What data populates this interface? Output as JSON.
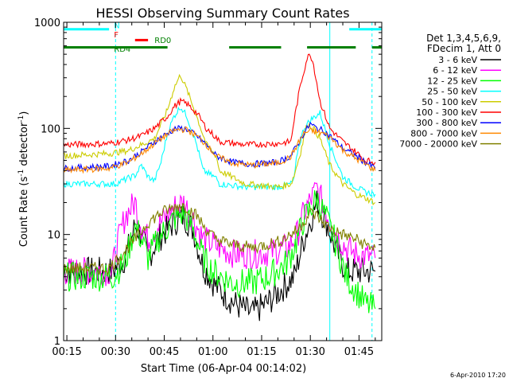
{
  "chart_data": {
    "type": "line",
    "title": "HESSI Observing Summary Count Rates",
    "xlabel": "Start Time (06-Apr-04 00:14:02)",
    "ylabel_main": "Count Rate (s",
    "ylabel_sup1": "-1",
    "ylabel_mid": " detector",
    "ylabel_sup2": "-1",
    "ylabel_end": ")",
    "x_units": "minutes after 00:00 UT",
    "xlim": [
      14,
      112
    ],
    "ylim": [
      1,
      1000
    ],
    "yscale": "log",
    "x_ticks": [
      {
        "x": 15,
        "label": "00:15"
      },
      {
        "x": 30,
        "label": "00:30"
      },
      {
        "x": 45,
        "label": "00:45"
      },
      {
        "x": 60,
        "label": "01:00"
      },
      {
        "x": 75,
        "label": "01:15"
      },
      {
        "x": 90,
        "label": "01:30"
      },
      {
        "x": 105,
        "label": "01:45"
      }
    ],
    "y_ticks": [
      {
        "y": 1,
        "label": "1"
      },
      {
        "y": 10,
        "label": "10"
      },
      {
        "y": 100,
        "label": "100"
      },
      {
        "y": 1000,
        "label": "1000"
      }
    ],
    "legend_header": [
      "Det 1,3,4,5,6,9,",
      "FDecim 1, Att 0"
    ],
    "legend_position": "right",
    "series": [
      {
        "name": "3 - 6 keV",
        "color": "#000000",
        "points": [
          [
            14,
            4.5
          ],
          [
            29,
            4.5
          ],
          [
            33,
            6
          ],
          [
            36,
            12
          ],
          [
            38,
            10
          ],
          [
            40,
            6
          ],
          [
            43,
            9
          ],
          [
            48,
            13
          ],
          [
            51,
            15
          ],
          [
            54,
            11
          ],
          [
            57,
            5
          ],
          [
            61,
            3.2
          ],
          [
            67,
            2.2
          ],
          [
            72,
            1.8
          ],
          [
            77,
            2.3
          ],
          [
            85,
            4
          ],
          [
            88,
            9
          ],
          [
            92,
            20
          ],
          [
            95,
            13
          ],
          [
            98,
            7
          ],
          [
            101,
            4.5
          ],
          [
            108,
            4.5
          ],
          [
            110,
            4.5
          ]
        ]
      },
      {
        "name": "6 - 12 keV",
        "color": "#ff00ff",
        "points": [
          [
            14,
            4.5
          ],
          [
            29,
            4.5
          ],
          [
            30,
            7
          ],
          [
            33,
            15
          ],
          [
            36,
            20
          ],
          [
            38,
            12
          ],
          [
            40,
            9
          ],
          [
            43,
            12
          ],
          [
            48,
            18
          ],
          [
            51,
            20
          ],
          [
            54,
            14
          ],
          [
            57,
            9
          ],
          [
            62,
            7.5
          ],
          [
            67,
            6.5
          ],
          [
            72,
            6.5
          ],
          [
            77,
            6.8
          ],
          [
            83,
            7.5
          ],
          [
            86,
            10
          ],
          [
            88,
            16
          ],
          [
            92,
            27
          ],
          [
            95,
            16
          ],
          [
            98,
            10
          ],
          [
            101,
            7.5
          ],
          [
            104,
            6.5
          ],
          [
            110,
            6
          ]
        ]
      },
      {
        "name": "12 - 25 keV",
        "color": "#00ff00",
        "points": [
          [
            14,
            4
          ],
          [
            29,
            4
          ],
          [
            33,
            5.5
          ],
          [
            36,
            12
          ],
          [
            38,
            9
          ],
          [
            40,
            6
          ],
          [
            43,
            9
          ],
          [
            48,
            14
          ],
          [
            51,
            16
          ],
          [
            54,
            11
          ],
          [
            57,
            6
          ],
          [
            60,
            4.5
          ],
          [
            66,
            3.5
          ],
          [
            72,
            3.5
          ],
          [
            77,
            4
          ],
          [
            83,
            5.5
          ],
          [
            86,
            9
          ],
          [
            88,
            14
          ],
          [
            92,
            22
          ],
          [
            95,
            14
          ],
          [
            98,
            8
          ],
          [
            101,
            4
          ],
          [
            104,
            3
          ],
          [
            107,
            2.2
          ],
          [
            110,
            2
          ]
        ]
      },
      {
        "name": "25 - 50 keV",
        "color": "#00ffff",
        "points": [
          [
            14,
            30
          ],
          [
            30,
            30
          ],
          [
            32,
            32
          ],
          [
            36,
            36
          ],
          [
            38,
            45
          ],
          [
            40,
            35
          ],
          [
            42,
            32
          ],
          [
            44,
            48
          ],
          [
            46,
            90
          ],
          [
            48,
            130
          ],
          [
            50,
            160
          ],
          [
            52,
            130
          ],
          [
            55,
            70
          ],
          [
            57,
            40
          ],
          [
            61,
            34
          ],
          [
            62,
            30
          ],
          [
            70,
            28
          ],
          [
            80,
            28
          ],
          [
            84,
            30
          ],
          [
            85,
            33
          ],
          [
            86,
            60
          ],
          [
            88,
            100
          ],
          [
            90,
            120
          ],
          [
            93,
            140
          ],
          [
            96,
            70
          ],
          [
            100,
            35
          ],
          [
            104,
            28
          ],
          [
            107,
            25
          ],
          [
            110,
            24
          ]
        ]
      },
      {
        "name": "50 - 100 keV",
        "color": "#cccc00",
        "points": [
          [
            14,
            55
          ],
          [
            28,
            58
          ],
          [
            34,
            62
          ],
          [
            38,
            70
          ],
          [
            42,
            80
          ],
          [
            46,
            150
          ],
          [
            48,
            240
          ],
          [
            50,
            320
          ],
          [
            52,
            230
          ],
          [
            55,
            130
          ],
          [
            58,
            70
          ],
          [
            61,
            55
          ],
          [
            62,
            40
          ],
          [
            70,
            30
          ],
          [
            80,
            28
          ],
          [
            84,
            30
          ],
          [
            85,
            36
          ],
          [
            87,
            60
          ],
          [
            89,
            110
          ],
          [
            91,
            100
          ],
          [
            93,
            80
          ],
          [
            96,
            45
          ],
          [
            100,
            30
          ],
          [
            104,
            24
          ],
          [
            107,
            22
          ],
          [
            110,
            20
          ]
        ]
      },
      {
        "name": "100 - 300 keV",
        "color": "#ff0000",
        "points": [
          [
            14,
            70
          ],
          [
            28,
            72
          ],
          [
            34,
            78
          ],
          [
            38,
            85
          ],
          [
            42,
            100
          ],
          [
            46,
            130
          ],
          [
            48,
            160
          ],
          [
            50,
            180
          ],
          [
            52,
            170
          ],
          [
            55,
            140
          ],
          [
            58,
            100
          ],
          [
            61,
            82
          ],
          [
            62,
            75
          ],
          [
            70,
            70
          ],
          [
            80,
            72
          ],
          [
            84,
            75
          ],
          [
            85,
            120
          ],
          [
            87,
            260
          ],
          [
            89,
            460
          ],
          [
            90,
            500
          ],
          [
            91,
            400
          ],
          [
            93,
            180
          ],
          [
            96,
            100
          ],
          [
            100,
            75
          ],
          [
            104,
            60
          ],
          [
            107,
            50
          ],
          [
            110,
            48
          ]
        ]
      },
      {
        "name": "300 - 800 keV",
        "color": "#0000ff",
        "points": [
          [
            14,
            42
          ],
          [
            28,
            44
          ],
          [
            34,
            50
          ],
          [
            38,
            60
          ],
          [
            42,
            75
          ],
          [
            46,
            90
          ],
          [
            48,
            98
          ],
          [
            50,
            100
          ],
          [
            52,
            98
          ],
          [
            55,
            85
          ],
          [
            58,
            70
          ],
          [
            61,
            55
          ],
          [
            66,
            48
          ],
          [
            72,
            46
          ],
          [
            80,
            48
          ],
          [
            84,
            55
          ],
          [
            86,
            70
          ],
          [
            88,
            90
          ],
          [
            90,
            110
          ],
          [
            92,
            100
          ],
          [
            94,
            95
          ],
          [
            97,
            80
          ],
          [
            100,
            65
          ],
          [
            104,
            55
          ],
          [
            107,
            48
          ],
          [
            110,
            42
          ]
        ]
      },
      {
        "name": "800 - 7000 keV",
        "color": "#ff8800",
        "points": [
          [
            14,
            40
          ],
          [
            28,
            42
          ],
          [
            34,
            48
          ],
          [
            38,
            58
          ],
          [
            42,
            72
          ],
          [
            46,
            88
          ],
          [
            48,
            95
          ],
          [
            50,
            98
          ],
          [
            52,
            97
          ],
          [
            55,
            85
          ],
          [
            58,
            70
          ],
          [
            61,
            55
          ],
          [
            66,
            47
          ],
          [
            72,
            45
          ],
          [
            80,
            47
          ],
          [
            84,
            54
          ],
          [
            86,
            70
          ],
          [
            88,
            90
          ],
          [
            90,
            95
          ],
          [
            92,
            92
          ],
          [
            94,
            90
          ],
          [
            97,
            78
          ],
          [
            100,
            62
          ],
          [
            104,
            52
          ],
          [
            107,
            46
          ],
          [
            110,
            40
          ]
        ]
      },
      {
        "name": "7000 - 20000 keV",
        "color": "#808000",
        "points": [
          [
            14,
            4.8
          ],
          [
            28,
            4.8
          ],
          [
            32,
            6.5
          ],
          [
            36,
            9
          ],
          [
            40,
            13
          ],
          [
            44,
            16
          ],
          [
            48,
            18
          ],
          [
            50,
            19
          ],
          [
            52,
            18
          ],
          [
            55,
            15
          ],
          [
            58,
            11
          ],
          [
            61,
            9
          ],
          [
            66,
            8
          ],
          [
            72,
            7.5
          ],
          [
            80,
            8.5
          ],
          [
            86,
            11
          ],
          [
            90,
            16
          ],
          [
            92,
            15
          ],
          [
            94,
            13
          ],
          [
            97,
            11
          ],
          [
            100,
            10
          ],
          [
            104,
            9
          ],
          [
            107,
            8
          ],
          [
            110,
            7.5
          ]
        ]
      }
    ],
    "annotations": [
      {
        "label": "N",
        "color": "#00ffff",
        "x": 29.5,
        "y_value": 880
      },
      {
        "label": "F",
        "color": "#ff0000",
        "x": 29.5,
        "y_value": 720
      },
      {
        "label": "RD0",
        "color": "#008000",
        "x": 42,
        "y_value": 640
      },
      {
        "label": "RD4",
        "color": "#008000",
        "x": 29.5,
        "y_value": 530
      }
    ],
    "flag_bars": [
      {
        "name": "N",
        "color": "#00ffff",
        "y_value": 860,
        "segments": [
          [
            14,
            28
          ],
          [
            102,
            113
          ]
        ]
      },
      {
        "name": "F",
        "color": "#ff0000",
        "y_value": 680,
        "segments": [
          [
            36,
            40
          ]
        ]
      },
      {
        "name": "RD",
        "color": "#008000",
        "y_value": 580,
        "segments": [
          [
            14,
            46
          ],
          [
            65,
            81
          ],
          [
            89,
            104
          ],
          [
            109,
            113
          ]
        ]
      }
    ],
    "event_lines": [
      {
        "kind": "dashed",
        "color": "#00ffff",
        "x": 30
      },
      {
        "kind": "dashed",
        "color": "#00ffff",
        "x": 109
      },
      {
        "kind": "solid",
        "color": "#00ffff",
        "x": 96
      }
    ],
    "grid": false
  },
  "footer": {
    "date_stamp": "6-Apr-2010 17:20"
  }
}
